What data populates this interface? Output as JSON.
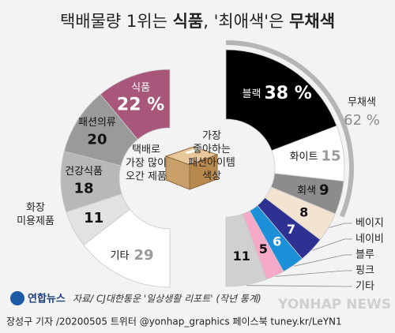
{
  "title": [
    "택배물량 1위는 ",
    "식품",
    ", '최애색'은 ",
    "무채색"
  ],
  "chart_data": [
    {
      "type": "half-donut",
      "side": "left",
      "center_text": "택배로\n가장 많이\n오간 제품",
      "categories": [
        "식품",
        "패션의류",
        "건강식품",
        "화장\n미용제품",
        "기타"
      ],
      "values": [
        22,
        20,
        18,
        11,
        29
      ],
      "value_labels": [
        "22 %",
        "20",
        "18",
        "11",
        "29"
      ],
      "colors": [
        "#a8577a",
        "#9a9a9a",
        "#b8b8b8",
        "#e2e2e2",
        "#ffffff"
      ]
    },
    {
      "type": "half-donut",
      "side": "right",
      "center_text": "가장\n좋아하는\n패션아이템\n색상",
      "categories": [
        "블랙",
        "화이트",
        "회색",
        "베이지",
        "네이비",
        "블루",
        "핑크",
        "기타"
      ],
      "values": [
        38,
        15,
        9,
        8,
        7,
        6,
        5,
        11
      ],
      "value_labels": [
        "38 %",
        "15",
        "9",
        "8",
        "7",
        "6",
        "5",
        "11"
      ],
      "colors": [
        "#000000",
        "#ffffff",
        "#8c8c8c",
        "#f3e4d2",
        "#2e3192",
        "#1b8fd8",
        "#f5a9c9",
        "#d0d0d0"
      ],
      "group": {
        "name": "무채색",
        "value": 62,
        "value_label": "62 %"
      }
    }
  ],
  "footer": {
    "logo": "연합뉴스",
    "source": "자료/ CJ대한통운 '일상생활 리포트' (작년 통계)",
    "credit": "장성구 기자  /20200505   트위터 @yonhap_graphics  페이스북 tuney.kr/LeYN1",
    "watermark": "YONHAP NEWS"
  }
}
